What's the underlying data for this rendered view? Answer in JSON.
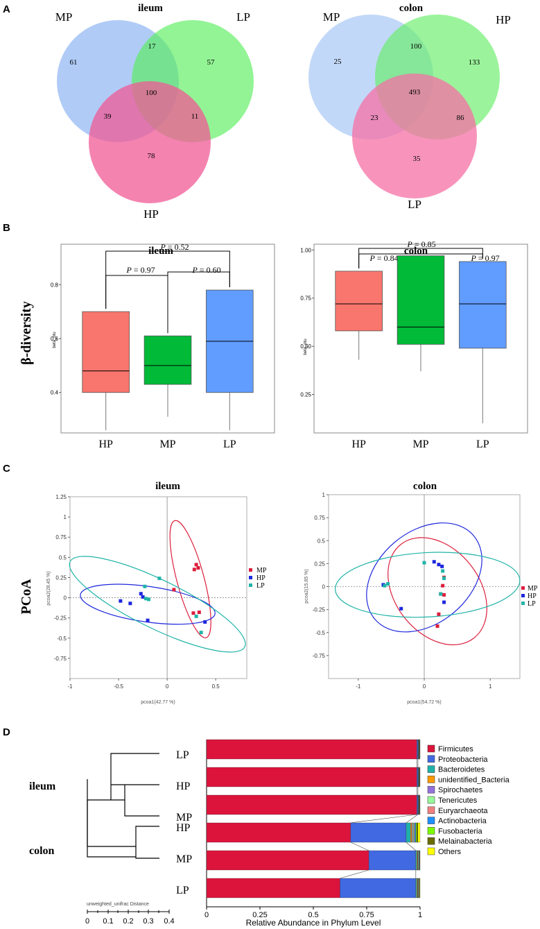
{
  "panels": {
    "A": "A",
    "B": "B",
    "C": "C",
    "D": "D"
  },
  "venn": [
    {
      "title": "ileum",
      "sets": [
        "MP",
        "LP",
        "HP"
      ],
      "colors": [
        "#8fb5f2",
        "#58ee5a",
        "#f05a96"
      ],
      "regions": {
        "MP_only": "61",
        "LP_only": "57",
        "HP_only": "78",
        "MP_LP": "17",
        "MP_HP": "39",
        "LP_HP": "11",
        "all": "100"
      }
    },
    {
      "title": "colon",
      "sets": [
        "MP",
        "HP",
        "LP"
      ],
      "colors": [
        "#a8c8f5",
        "#66ee66",
        "#f570a6"
      ],
      "regions": {
        "MP_only": "25",
        "HP_only": "133",
        "LP_only": "35",
        "MP_HP": "100",
        "MP_LP": "23",
        "HP_LP": "86",
        "all": "493"
      }
    }
  ],
  "beta": {
    "side_label": "β-diversity",
    "ylabel": "beta_otu",
    "groups": [
      "HP",
      "MP",
      "LP"
    ],
    "colors": [
      "#f8766d",
      "#00ba38",
      "#619cff"
    ],
    "ileum": {
      "title": "ileum",
      "ylim": [
        0.25,
        0.95
      ],
      "ticks": [
        "0.4",
        "0.6",
        "0.8"
      ],
      "tick_values": [
        0.4,
        0.6,
        0.8
      ],
      "boxes": [
        {
          "min": 0.26,
          "q1": 0.4,
          "median": 0.48,
          "q3": 0.7,
          "max": 0.7
        },
        {
          "min": 0.31,
          "q1": 0.43,
          "median": 0.5,
          "q3": 0.61,
          "max": 0.61
        },
        {
          "min": 0.26,
          "q1": 0.4,
          "median": 0.59,
          "q3": 0.78,
          "max": 0.78
        }
      ],
      "p": {
        "HP_LP": "0.52",
        "HP_MP": "0.97",
        "MP_LP": "0.60"
      }
    },
    "colon": {
      "title": "colon",
      "ylim": [
        0.05,
        1.03
      ],
      "ticks": [
        "0.25",
        "0.50",
        "0.75",
        "1.00"
      ],
      "tick_values": [
        0.25,
        0.5,
        0.75,
        1.0
      ],
      "boxes": [
        {
          "min": 0.43,
          "q1": 0.58,
          "median": 0.72,
          "q3": 0.89,
          "max": 0.89
        },
        {
          "min": 0.37,
          "q1": 0.51,
          "median": 0.6,
          "q3": 0.97,
          "max": 0.97
        },
        {
          "min": 0.1,
          "q1": 0.49,
          "median": 0.72,
          "q3": 0.94,
          "max": 0.94
        }
      ],
      "p": {
        "HP_LP": "0.85",
        "HP_MP": "0.84",
        "MP_LP": "0.97"
      }
    }
  },
  "pcoa": {
    "side_label": "PCoA",
    "legend": [
      "MP",
      "HP",
      "LP"
    ],
    "colors": {
      "MP": "#dc1e3c",
      "HP": "#1e28dc",
      "LP": "#20b4a8"
    },
    "ileum": {
      "title": "ileum",
      "xlabel": "pcoa1(42.77 %)",
      "ylabel": "pcoa2(28.45 %)",
      "xlim": [
        -1.0,
        0.82
      ],
      "ylim": [
        -1.0,
        1.25
      ],
      "xticks": [
        -1,
        -0.5,
        0,
        0.5
      ],
      "xtick_labels": [
        "-1",
        "-0.5",
        "0",
        "0.5"
      ],
      "yticks": [
        -0.75,
        -0.5,
        -0.25,
        0,
        0.25,
        0.5,
        0.75,
        1,
        1.25
      ],
      "ytick_labels": [
        "-0.75",
        "-0.5",
        "-0.25",
        "0",
        "0.25",
        "0.5",
        "0.75",
        "1",
        "1.25"
      ],
      "points": {
        "MP": [
          [
            0.3,
            0.41
          ],
          [
            0.32,
            0.37
          ],
          [
            0.28,
            0.35
          ],
          [
            0.07,
            0.1
          ],
          [
            0.27,
            -0.19
          ],
          [
            0.33,
            -0.18
          ]
        ],
        "HP": [
          [
            -0.48,
            -0.04
          ],
          [
            -0.38,
            -0.07
          ],
          [
            -0.27,
            0.05
          ],
          [
            -0.25,
            0.01
          ],
          [
            -0.2,
            -0.28
          ],
          [
            0.39,
            -0.3
          ]
        ],
        "LP": [
          [
            -0.08,
            0.24
          ],
          [
            -0.23,
            0.14
          ],
          [
            -0.22,
            -0.01
          ],
          [
            -0.19,
            -0.02
          ],
          [
            0.3,
            -0.23
          ],
          [
            0.35,
            -0.43
          ]
        ]
      },
      "ellipses": {
        "MP": {
          "cx": 0.24,
          "cy": 0.23,
          "rx": 0.14,
          "ry": 0.75,
          "rot": 15
        },
        "HP": {
          "cx": -0.2,
          "cy": -0.08,
          "rx": 0.7,
          "ry": 0.22,
          "rot": -8
        },
        "LP": {
          "cx": -0.1,
          "cy": -0.08,
          "rx": 1.0,
          "ry": 0.3,
          "rot": -26
        }
      }
    },
    "colon": {
      "title": "colon",
      "xlabel": "pcoa1(54.72 %)",
      "ylabel": "pcoa2(15.85 %)",
      "xlim": [
        -1.45,
        1.45
      ],
      "ylim": [
        -1.0,
        1.0
      ],
      "xticks": [
        -1,
        0,
        1
      ],
      "xtick_labels": [
        "-1",
        "0",
        "1"
      ],
      "yticks": [
        -0.75,
        -0.5,
        -0.25,
        0,
        0.25,
        0.5,
        0.75,
        1
      ],
      "ytick_labels": [
        "-0.75",
        "-0.5",
        "-0.25",
        "0",
        "0.25",
        "0.5",
        "0.75",
        "1"
      ],
      "points": {
        "MP": [
          [
            0.3,
            0.1
          ],
          [
            0.28,
            0.01
          ],
          [
            0.25,
            -0.08
          ],
          [
            0.3,
            -0.09
          ],
          [
            0.22,
            -0.3
          ],
          [
            0.2,
            -0.43
          ]
        ],
        "HP": [
          [
            0.15,
            0.27
          ],
          [
            0.22,
            0.24
          ],
          [
            0.27,
            0.22
          ],
          [
            -0.62,
            0.02
          ],
          [
            -0.35,
            -0.24
          ],
          [
            0.3,
            -0.17
          ]
        ],
        "LP": [
          [
            0.0,
            0.26
          ],
          [
            0.28,
            0.17
          ],
          [
            0.3,
            0.09
          ],
          [
            -0.55,
            0.03
          ],
          [
            -0.6,
            0.01
          ],
          [
            0.25,
            -0.08
          ]
        ]
      },
      "ellipses": {
        "MP": {
          "cx": 0.2,
          "cy": -0.05,
          "rx": 0.9,
          "ry": 0.46,
          "rot": -52
        },
        "HP": {
          "cx": 0.0,
          "cy": 0.1,
          "rx": 0.98,
          "ry": 0.5,
          "rot": 40
        },
        "LP": {
          "cx": 0.05,
          "cy": 0.02,
          "rx": 1.4,
          "ry": 0.35,
          "rot": 3
        }
      }
    }
  },
  "chart_data": [
    {
      "type": "bar",
      "title": "Relative Abundance in Phylum Level",
      "xlabel": "Relative Abundance in Phylum Level",
      "categories": [
        "ileum LP",
        "ileum HP",
        "ileum MP",
        "colon HP",
        "colon MP",
        "colon LP"
      ],
      "xlim": [
        0,
        1
      ],
      "xticks": [
        "0",
        "0.25",
        "0.5",
        "0.75",
        "1"
      ],
      "series": [
        {
          "name": "Firmicutes",
          "color": "#dc143c",
          "values": [
            0.985,
            0.985,
            0.985,
            0.675,
            0.76,
            0.625
          ]
        },
        {
          "name": "Proteobacteria",
          "color": "#4169e1",
          "values": [
            0.005,
            0.005,
            0.005,
            0.26,
            0.22,
            0.355
          ]
        },
        {
          "name": "Bacteroidetes",
          "color": "#20b2aa",
          "values": [
            0.002,
            0.002,
            0.002,
            0.02,
            0.005,
            0.005
          ]
        },
        {
          "name": "unidentified_Bacteria",
          "color": "#ff9900",
          "values": [
            0.001,
            0.001,
            0.001,
            0.006,
            0.003,
            0.003
          ]
        },
        {
          "name": "Spirochaetes",
          "color": "#9370db",
          "values": [
            0.001,
            0.001,
            0.001,
            0.004,
            0.002,
            0.002
          ]
        },
        {
          "name": "Tenericutes",
          "color": "#98fb98",
          "values": [
            0.001,
            0.001,
            0.001,
            0.005,
            0.003,
            0.002
          ]
        },
        {
          "name": "Euryarchaeota",
          "color": "#f08080",
          "values": [
            0.001,
            0.001,
            0.001,
            0.004,
            0.002,
            0.002
          ]
        },
        {
          "name": "Actinobacteria",
          "color": "#1e90ff",
          "values": [
            0.001,
            0.001,
            0.001,
            0.006,
            0.002,
            0.002
          ]
        },
        {
          "name": "Fusobacteria",
          "color": "#7cfc00",
          "values": [
            0.001,
            0.001,
            0.001,
            0.004,
            0.001,
            0.001
          ]
        },
        {
          "name": "Melainabacteria",
          "color": "#6b6b00",
          "values": [
            0.001,
            0.001,
            0.001,
            0.006,
            0.001,
            0.001
          ]
        },
        {
          "name": "Others",
          "color": "#ffff00",
          "values": [
            0.001,
            0.001,
            0.001,
            0.01,
            0.001,
            0.002
          ]
        }
      ]
    }
  ],
  "dendro": {
    "group_labels": [
      "ileum",
      "colon"
    ],
    "leaf_labels": [
      "LP",
      "HP",
      "MP",
      "HP",
      "MP",
      "LP"
    ],
    "scale_label": "unweighted_unifrac Distance",
    "scale_ticks": [
      "0",
      "0.1",
      "0.2",
      "0.3",
      "0.4"
    ]
  }
}
